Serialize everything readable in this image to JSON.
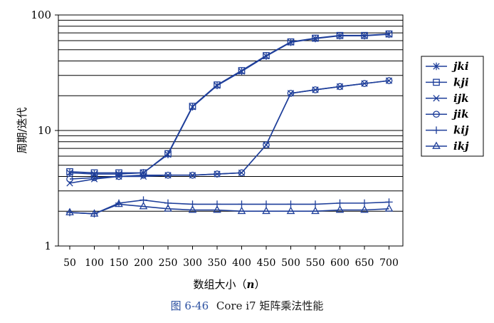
{
  "caption": {
    "number": "图 6-46",
    "text": "Core i7 矩阵乘法性能"
  },
  "chart_data": {
    "type": "line",
    "ylabel": "周期/迭代",
    "xlabel_text": "数组大小（",
    "xlabel_var": "n",
    "xlabel_close": "）",
    "x_scale": "category",
    "y_scale": "log",
    "ylim": [
      1,
      100
    ],
    "ytick_labels": [
      "1",
      "10",
      "100"
    ],
    "ytick_values": [
      1,
      10,
      100
    ],
    "grid": "horizontal",
    "legend_position": "right",
    "categories": [
      "50",
      "100",
      "150",
      "200",
      "250",
      "300",
      "350",
      "400",
      "450",
      "500",
      "550",
      "600",
      "650",
      "700"
    ],
    "line_color": "#1f3f9a",
    "series": [
      {
        "name": "jki",
        "marker": "asterisk",
        "values": [
          4.3,
          4.2,
          4.2,
          4.3,
          6.2,
          16.0,
          24.5,
          32.5,
          44.0,
          58.0,
          62.5,
          66.0,
          66.0,
          68.0
        ]
      },
      {
        "name": "kji",
        "marker": "square",
        "values": [
          4.4,
          4.3,
          4.3,
          4.3,
          6.3,
          16.2,
          24.8,
          33.0,
          44.5,
          58.5,
          63.0,
          66.5,
          66.5,
          68.5
        ]
      },
      {
        "name": "ijk",
        "marker": "x",
        "values": [
          3.5,
          3.8,
          4.0,
          4.0,
          4.1,
          4.1,
          4.2,
          4.3,
          7.5,
          21.0,
          22.5,
          24.0,
          25.5,
          27.0
        ]
      },
      {
        "name": "jik",
        "marker": "circle",
        "values": [
          3.8,
          3.9,
          4.0,
          4.1,
          4.1,
          4.1,
          4.2,
          4.3,
          7.5,
          21.0,
          22.5,
          24.0,
          25.5,
          27.0
        ]
      },
      {
        "name": "kij",
        "marker": "plus",
        "values": [
          1.95,
          1.9,
          2.35,
          2.5,
          2.35,
          2.3,
          2.3,
          2.3,
          2.3,
          2.3,
          2.3,
          2.35,
          2.35,
          2.4
        ]
      },
      {
        "name": "ikj",
        "marker": "triangle",
        "values": [
          1.95,
          1.9,
          2.3,
          2.2,
          2.1,
          2.05,
          2.05,
          2.0,
          2.0,
          2.0,
          2.0,
          2.05,
          2.05,
          2.1
        ]
      }
    ]
  }
}
